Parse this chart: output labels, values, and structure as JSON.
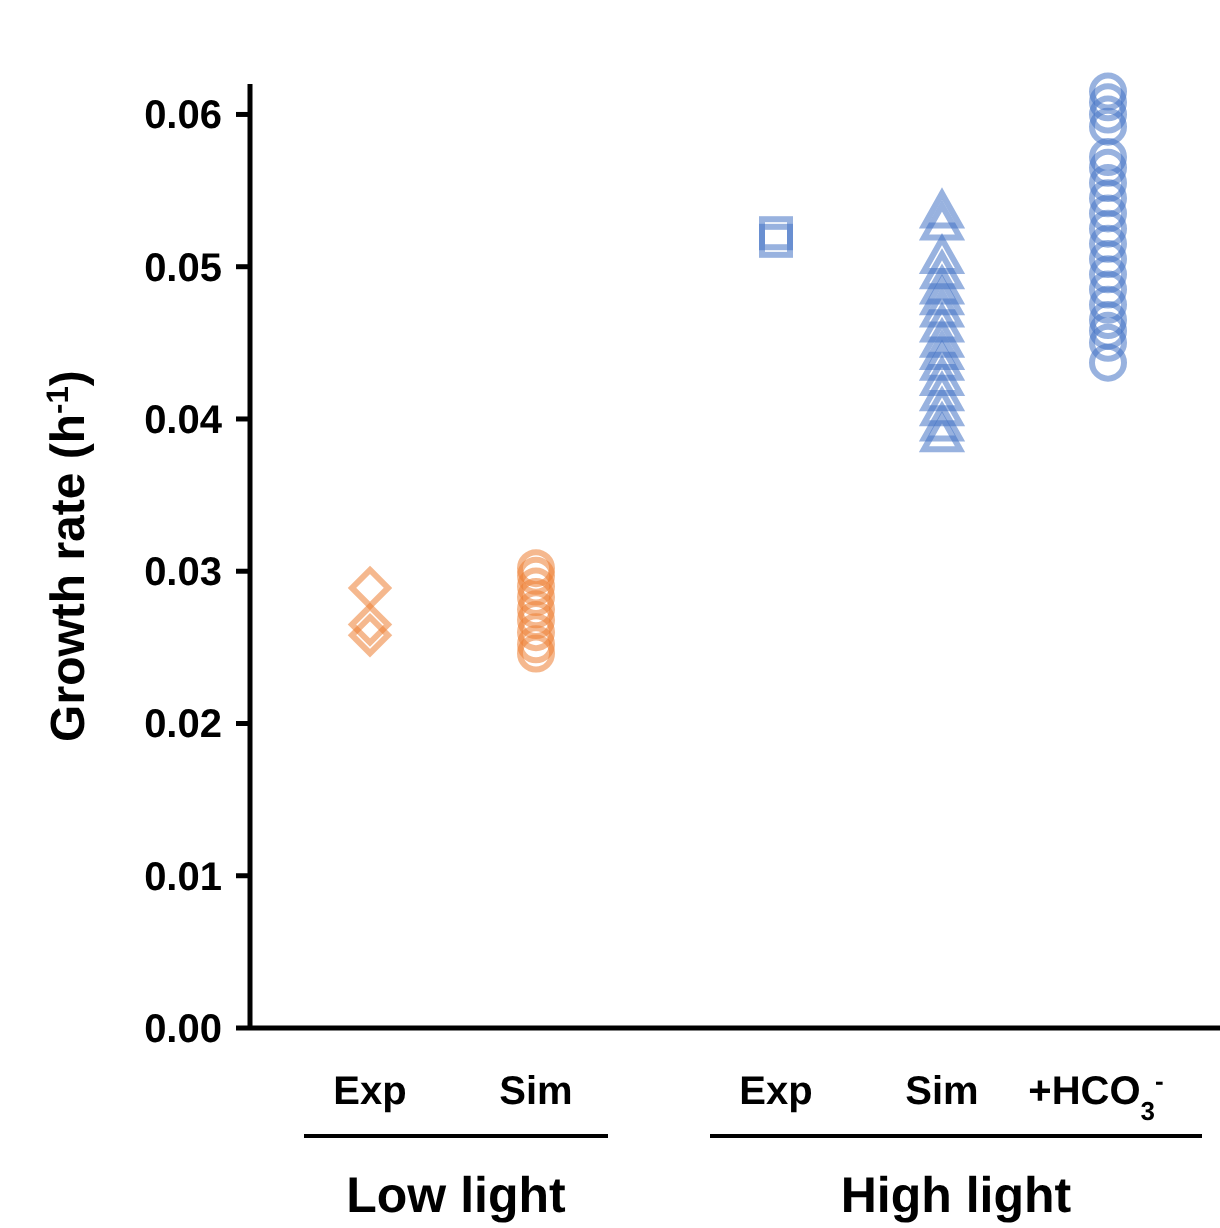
{
  "chart_data": {
    "type": "scatter",
    "ylabel": "Growth rate (h$^{-1}$)",
    "categories": [
      "Exp",
      "Sim",
      "Exp",
      "Sim",
      "+HCO$_{3}$$^{-}$"
    ],
    "ylim": [
      0,
      0.062
    ],
    "yticks": [
      {
        "value": 0,
        "label": "0.00"
      },
      0.01,
      0.02,
      0.03,
      0.04,
      0.05,
      0.06
    ],
    "grid": false,
    "annotations": [
      "Low light",
      "High light"
    ],
    "series": [
      {
        "color": "#ed7d31",
        "marker": "diamond",
        "values": [
          0.0289,
          null,
          null,
          null,
          null
        ]
      },
      {
        "color": "#ed7d31",
        "marker": "diamond",
        "values": [
          0.0265,
          null,
          null,
          null,
          null
        ]
      },
      {
        "color": "#ed7d31",
        "marker": "diamond",
        "values": [
          0.0258,
          null,
          null,
          null,
          null
        ]
      },
      {
        "color": "#ed7d31",
        "marker": "circle",
        "values": [
          null,
          0.0246,
          null,
          null,
          null
        ]
      },
      {
        "color": "#ed7d31",
        "marker": "circle",
        "values": [
          null,
          0.0252,
          null,
          null,
          null
        ]
      },
      {
        "color": "#ed7d31",
        "marker": "circle",
        "values": [
          null,
          0.026,
          null,
          null,
          null
        ]
      },
      {
        "color": "#ed7d31",
        "marker": "circle",
        "values": [
          null,
          0.0268,
          null,
          null,
          null
        ]
      },
      {
        "color": "#ed7d31",
        "marker": "circle",
        "values": [
          null,
          0.0275,
          null,
          null,
          null
        ]
      },
      {
        "color": "#ed7d31",
        "marker": "circle",
        "values": [
          null,
          0.0283,
          null,
          null,
          null
        ]
      },
      {
        "color": "#ed7d31",
        "marker": "circle",
        "values": [
          null,
          0.029,
          null,
          null,
          null
        ]
      },
      {
        "color": "#ed7d31",
        "marker": "circle",
        "values": [
          null,
          0.0297,
          null,
          null,
          null
        ]
      },
      {
        "color": "#ed7d31",
        "marker": "circle",
        "values": [
          null,
          0.0302,
          null,
          null,
          null
        ]
      },
      {
        "color": "#4472c4",
        "marker": "square",
        "values": [
          null,
          null,
          0.0517,
          null,
          null
        ]
      },
      {
        "color": "#4472c4",
        "marker": "square",
        "values": [
          null,
          null,
          0.0522,
          null,
          null
        ]
      },
      {
        "color": "#4472c4",
        "marker": "triangle",
        "values": [
          null,
          null,
          null,
          0.0535,
          null
        ]
      },
      {
        "color": "#4472c4",
        "marker": "triangle",
        "values": [
          null,
          null,
          null,
          0.0527,
          null
        ]
      },
      {
        "color": "#4472c4",
        "marker": "triangle",
        "values": [
          null,
          null,
          null,
          0.0505,
          null
        ]
      },
      {
        "color": "#4472c4",
        "marker": "triangle",
        "values": [
          null,
          null,
          null,
          0.0495,
          null
        ]
      },
      {
        "color": "#4472c4",
        "marker": "triangle",
        "values": [
          null,
          null,
          null,
          0.0485,
          null
        ]
      },
      {
        "color": "#4472c4",
        "marker": "triangle",
        "values": [
          null,
          null,
          null,
          0.0478,
          null
        ]
      },
      {
        "color": "#4472c4",
        "marker": "triangle",
        "values": [
          null,
          null,
          null,
          0.047,
          null
        ]
      },
      {
        "color": "#4472c4",
        "marker": "triangle",
        "values": [
          null,
          null,
          null,
          0.046,
          null
        ]
      },
      {
        "color": "#4472c4",
        "marker": "triangle",
        "values": [
          null,
          null,
          null,
          0.045,
          null
        ]
      },
      {
        "color": "#4472c4",
        "marker": "triangle",
        "values": [
          null,
          null,
          null,
          0.0442,
          null
        ]
      },
      {
        "color": "#4472c4",
        "marker": "triangle",
        "values": [
          null,
          null,
          null,
          0.0435,
          null
        ]
      },
      {
        "color": "#4472c4",
        "marker": "triangle",
        "values": [
          null,
          null,
          null,
          0.0425,
          null
        ]
      },
      {
        "color": "#4472c4",
        "marker": "triangle",
        "values": [
          null,
          null,
          null,
          0.0415,
          null
        ]
      },
      {
        "color": "#4472c4",
        "marker": "triangle",
        "values": [
          null,
          null,
          null,
          0.0405,
          null
        ]
      },
      {
        "color": "#4472c4",
        "marker": "triangle",
        "values": [
          null,
          null,
          null,
          0.0395,
          null
        ]
      },
      {
        "color": "#4472c4",
        "marker": "triangle",
        "values": [
          null,
          null,
          null,
          0.0388,
          null
        ]
      },
      {
        "color": "#4472c4",
        "marker": "circle",
        "values": [
          null,
          null,
          null,
          null,
          0.0615
        ]
      },
      {
        "color": "#4472c4",
        "marker": "circle",
        "values": [
          null,
          null,
          null,
          null,
          0.0608
        ]
      },
      {
        "color": "#4472c4",
        "marker": "circle",
        "values": [
          null,
          null,
          null,
          null,
          0.06
        ]
      },
      {
        "color": "#4472c4",
        "marker": "circle",
        "values": [
          null,
          null,
          null,
          null,
          0.0592
        ]
      },
      {
        "color": "#4472c4",
        "marker": "circle",
        "values": [
          null,
          null,
          null,
          null,
          0.0572
        ]
      },
      {
        "color": "#4472c4",
        "marker": "circle",
        "values": [
          null,
          null,
          null,
          null,
          0.0565
        ]
      },
      {
        "color": "#4472c4",
        "marker": "circle",
        "values": [
          null,
          null,
          null,
          null,
          0.0555
        ]
      },
      {
        "color": "#4472c4",
        "marker": "circle",
        "values": [
          null,
          null,
          null,
          null,
          0.0545
        ]
      },
      {
        "color": "#4472c4",
        "marker": "circle",
        "values": [
          null,
          null,
          null,
          null,
          0.0535
        ]
      },
      {
        "color": "#4472c4",
        "marker": "circle",
        "values": [
          null,
          null,
          null,
          null,
          0.0525
        ]
      },
      {
        "color": "#4472c4",
        "marker": "circle",
        "values": [
          null,
          null,
          null,
          null,
          0.0515
        ]
      },
      {
        "color": "#4472c4",
        "marker": "circle",
        "values": [
          null,
          null,
          null,
          null,
          0.0505
        ]
      },
      {
        "color": "#4472c4",
        "marker": "circle",
        "values": [
          null,
          null,
          null,
          null,
          0.0495
        ]
      },
      {
        "color": "#4472c4",
        "marker": "circle",
        "values": [
          null,
          null,
          null,
          null,
          0.0485
        ]
      },
      {
        "color": "#4472c4",
        "marker": "circle",
        "values": [
          null,
          null,
          null,
          null,
          0.0475
        ]
      },
      {
        "color": "#4472c4",
        "marker": "circle",
        "values": [
          null,
          null,
          null,
          null,
          0.0465
        ]
      },
      {
        "color": "#4472c4",
        "marker": "circle",
        "values": [
          null,
          null,
          null,
          null,
          0.0458
        ]
      },
      {
        "color": "#4472c4",
        "marker": "circle",
        "values": [
          null,
          null,
          null,
          null,
          0.045
        ]
      },
      {
        "color": "#4472c4",
        "marker": "circle",
        "values": [
          null,
          null,
          null,
          null,
          0.0437
        ]
      }
    ]
  }
}
